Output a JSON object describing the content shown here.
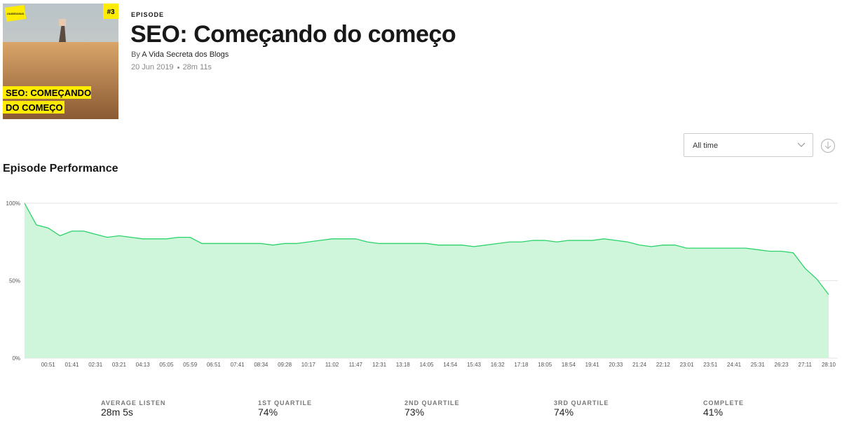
{
  "cover": {
    "badge": "#3",
    "logo": "A VIDA SECRETA DOS BLOGS",
    "caption_line1": "SEO: COMEÇANDO",
    "caption_line2": "DO COMEÇO"
  },
  "episode": {
    "label": "EPISODE",
    "title": "SEO: Começando do começo",
    "by": "By",
    "author": "A Vida Secreta dos Blogs",
    "date": "20 Jun 2019",
    "duration": "28m 11s"
  },
  "filter": {
    "selected": "All time"
  },
  "section_title": "Episode Performance",
  "chart_data": {
    "type": "area",
    "categories": [
      null,
      null,
      "00:51",
      null,
      "01:41",
      null,
      "02:31",
      null,
      "03:21",
      null,
      "04:13",
      null,
      "05:05",
      null,
      "05:59",
      null,
      "06:51",
      null,
      "07:41",
      null,
      "08:34",
      null,
      "09:28",
      null,
      "10:17",
      null,
      "11:02",
      null,
      "11:47",
      null,
      "12:31",
      null,
      "13:18",
      null,
      "14:05",
      null,
      "14:54",
      null,
      "15:43",
      null,
      "16:32",
      null,
      "17:18",
      null,
      "18:05",
      null,
      "18:54",
      null,
      "19:41",
      null,
      "20:33",
      null,
      "21:24",
      null,
      "22:12",
      null,
      "23:01",
      null,
      "23:51",
      null,
      "24:41",
      null,
      "25:31",
      null,
      "26:23",
      null,
      "27:11",
      null,
      "28:10"
    ],
    "values": [
      100,
      86,
      84,
      79,
      82,
      82,
      80,
      78,
      79,
      78,
      77,
      77,
      77,
      78,
      78,
      74,
      74,
      74,
      74,
      74,
      74,
      73,
      74,
      74,
      75,
      76,
      77,
      77,
      77,
      75,
      74,
      74,
      74,
      74,
      74,
      73,
      73,
      73,
      72,
      73,
      74,
      75,
      75,
      76,
      76,
      75,
      76,
      76,
      76,
      77,
      76,
      75,
      73,
      72,
      73,
      73,
      71,
      71,
      71,
      71,
      71,
      71,
      70,
      69,
      69,
      68,
      58,
      51,
      41
    ],
    "color": "#2bd36a",
    "fill_color": "#cff5da",
    "ylim": [
      0,
      100
    ],
    "yticks": [
      {
        "value": 0,
        "label": "0%"
      },
      {
        "value": 50,
        "label": "50%"
      },
      {
        "value": 100,
        "label": "100%"
      }
    ],
    "grid": true
  },
  "stats": [
    {
      "label": "AVERAGE LISTEN",
      "value": "28m 5s"
    },
    {
      "label": "1ST QUARTILE",
      "value": "74%"
    },
    {
      "label": "2ND QUARTILE",
      "value": "73%"
    },
    {
      "label": "3RD QUARTILE",
      "value": "74%"
    },
    {
      "label": "COMPLETE",
      "value": "41%"
    }
  ]
}
